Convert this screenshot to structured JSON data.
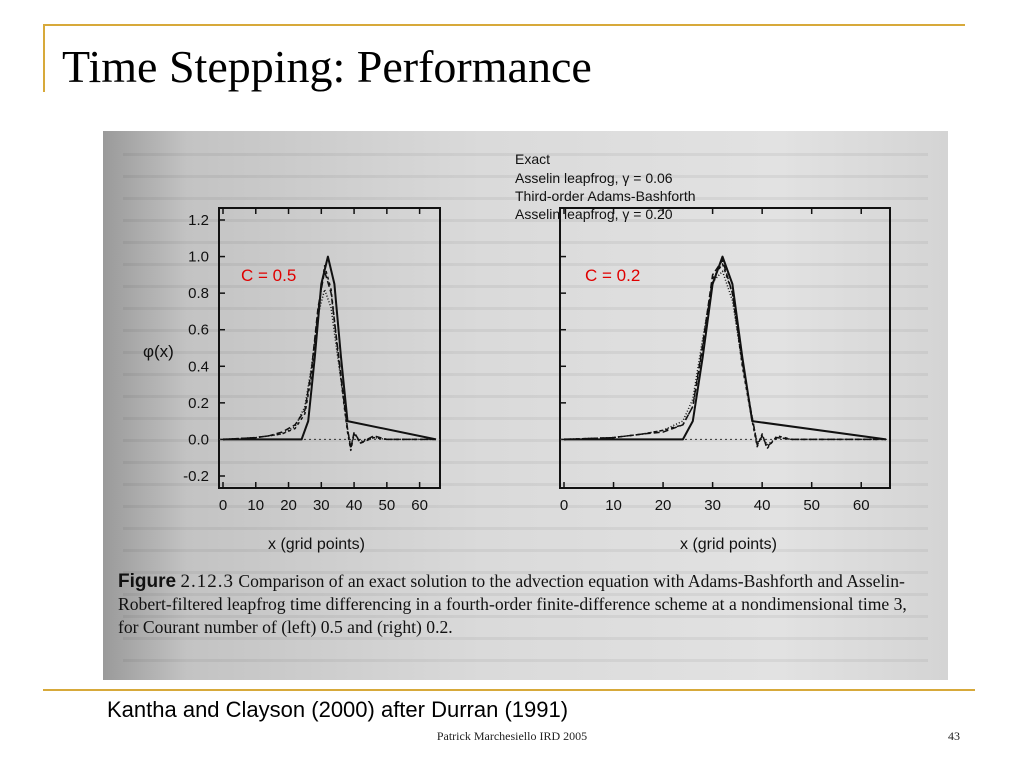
{
  "slide": {
    "title": "Time Stepping: Performance",
    "credit": "Kantha and Clayson (2000) after Durran (1991)",
    "footer": "Patrick Marchesiello IRD 2005",
    "page_number": "43",
    "accent_color": "#d7a93a"
  },
  "figure": {
    "caption_label": "Figure",
    "caption_number": "2.12.3",
    "caption_text": "Comparison of an exact solution to the advection equation with Adams-Bashforth and Asselin-Robert-filtered leapfrog time differencing in a fourth-order finite-difference scheme at a nondimensional time 3, for Courant number of (left) 0.5 and (right) 0.2."
  },
  "chart_data": [
    {
      "type": "line",
      "annotation": "C = 0.5",
      "annotation_color": "#e00000",
      "xlabel": "x (grid points)",
      "ylabel": "φ(x)",
      "xlim": [
        0,
        65
      ],
      "ylim": [
        -0.2,
        1.2
      ],
      "xticks": [
        0,
        10,
        20,
        30,
        40,
        50,
        60
      ],
      "yticks": [
        "-0.2",
        "0.0",
        "0.2",
        "0.4",
        "0.6",
        "0.8",
        "1.0",
        "1.2"
      ],
      "legend": [
        "Exact",
        "Asselin leapfrog, γ = 0.06",
        "Third-order Adams-Bashforth",
        "Asselin leapfrog, γ = 0.20"
      ],
      "legend_placement": "top",
      "series": [
        {
          "name": "Exact",
          "x": [
            0,
            24,
            26,
            28,
            30,
            32,
            34,
            36,
            38,
            65
          ],
          "y": [
            0,
            0,
            0.1,
            0.45,
            0.85,
            1.0,
            0.85,
            0.45,
            0.1,
            0
          ]
        },
        {
          "name": "Asselin leapfrog, γ = 0.06",
          "x": [
            0,
            10,
            14,
            18,
            22,
            25,
            27,
            29,
            31,
            33,
            35,
            37,
            38,
            39,
            40,
            42,
            46,
            50,
            55,
            65
          ],
          "y": [
            0,
            0.01,
            0.02,
            0.03,
            0.06,
            0.14,
            0.35,
            0.7,
            0.95,
            0.82,
            0.48,
            0.18,
            0.04,
            -0.06,
            0.03,
            -0.02,
            0.01,
            0,
            0,
            0
          ]
        },
        {
          "name": "Third-order Adams-Bashforth",
          "x": [
            0,
            10,
            14,
            18,
            22,
            25,
            27,
            29,
            31,
            33,
            35,
            37,
            38,
            39,
            40,
            42,
            46,
            50,
            55,
            65
          ],
          "y": [
            0,
            0.01,
            0.02,
            0.04,
            0.08,
            0.16,
            0.38,
            0.72,
            0.92,
            0.8,
            0.5,
            0.2,
            0.06,
            -0.05,
            0.04,
            -0.02,
            0.02,
            0,
            0,
            0
          ]
        },
        {
          "name": "Asselin leapfrog, γ = 0.20",
          "x": [
            0,
            10,
            14,
            18,
            22,
            25,
            27,
            29,
            31,
            33,
            35,
            37,
            38,
            39,
            40,
            42,
            46,
            50,
            55,
            65
          ],
          "y": [
            0,
            0.01,
            0.02,
            0.03,
            0.07,
            0.18,
            0.4,
            0.68,
            0.82,
            0.72,
            0.45,
            0.2,
            0.06,
            -0.04,
            0.03,
            -0.01,
            0.01,
            0,
            0,
            0
          ]
        }
      ]
    },
    {
      "type": "line",
      "annotation": "C = 0.2",
      "annotation_color": "#e00000",
      "xlabel": "x (grid points)",
      "ylabel": "",
      "xlim": [
        0,
        65
      ],
      "ylim": [
        -0.2,
        1.2
      ],
      "xticks": [
        0,
        10,
        20,
        30,
        40,
        50,
        60
      ],
      "yticks": [],
      "series": [
        {
          "name": "Exact",
          "x": [
            0,
            24,
            26,
            28,
            30,
            32,
            34,
            36,
            38,
            65
          ],
          "y": [
            0,
            0,
            0.1,
            0.45,
            0.85,
            1.0,
            0.85,
            0.45,
            0.1,
            0
          ]
        },
        {
          "name": "Asselin leapfrog, γ = 0.06",
          "x": [
            0,
            10,
            16,
            20,
            24,
            26,
            28,
            30,
            32,
            34,
            36,
            38,
            39,
            40,
            41,
            43,
            46,
            50,
            55,
            65
          ],
          "y": [
            0,
            0.01,
            0.03,
            0.05,
            0.08,
            0.18,
            0.5,
            0.88,
            0.96,
            0.8,
            0.4,
            0.1,
            -0.04,
            0.03,
            -0.05,
            0.02,
            0,
            0,
            0,
            0
          ]
        },
        {
          "name": "Third-order Adams-Bashforth",
          "x": [
            0,
            10,
            16,
            20,
            24,
            26,
            28,
            30,
            32,
            34,
            36,
            38,
            39,
            40,
            41,
            43,
            46,
            50,
            55,
            65
          ],
          "y": [
            0,
            0.01,
            0.03,
            0.04,
            0.08,
            0.18,
            0.52,
            0.9,
            0.98,
            0.8,
            0.42,
            0.12,
            -0.03,
            0.02,
            -0.04,
            0.01,
            0,
            0,
            0,
            0
          ]
        },
        {
          "name": "Asselin leapfrog, γ = 0.20",
          "x": [
            0,
            10,
            16,
            20,
            24,
            26,
            28,
            30,
            32,
            34,
            36,
            38,
            39,
            40,
            41,
            43,
            46,
            50,
            55,
            65
          ],
          "y": [
            0,
            0.01,
            0.03,
            0.05,
            0.1,
            0.22,
            0.55,
            0.86,
            0.92,
            0.76,
            0.42,
            0.12,
            -0.02,
            0.02,
            -0.03,
            0.01,
            0,
            0,
            0,
            0
          ]
        }
      ]
    }
  ]
}
